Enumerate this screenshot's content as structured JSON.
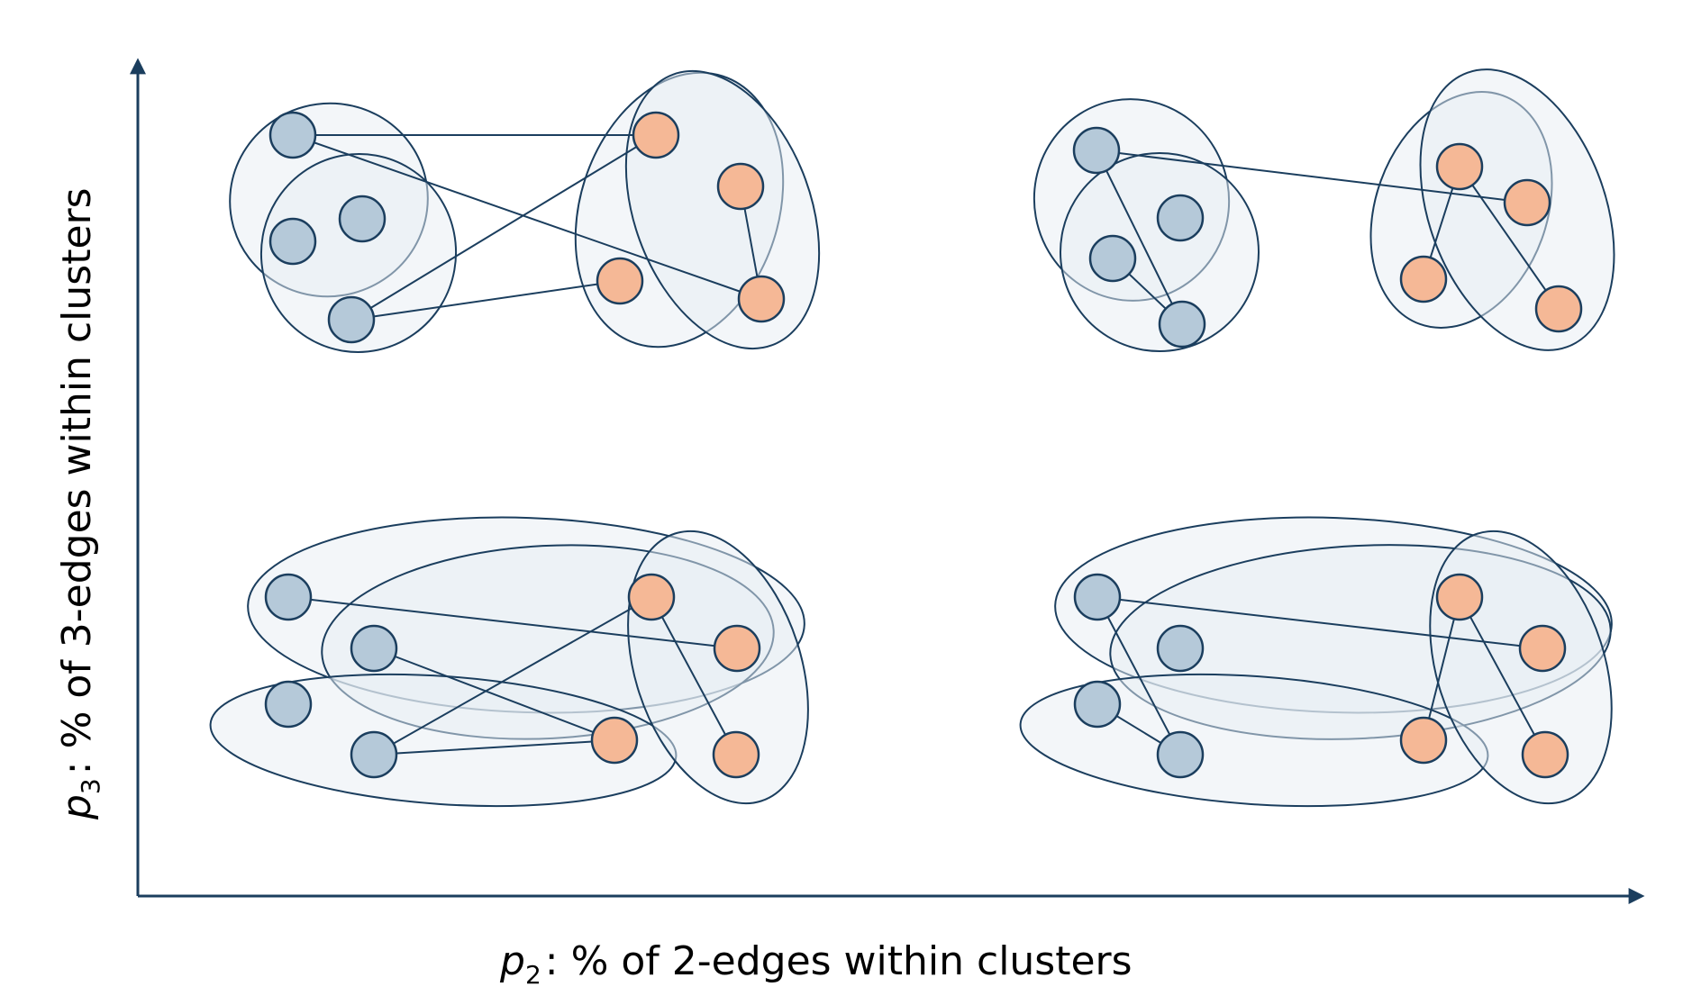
{
  "x_axis": {
    "var": "p",
    "sub": "2",
    "text": ": % of 2-edges within clusters"
  },
  "y_axis": {
    "var": "p",
    "sub": "3",
    "text": ": % of 3-edges within clusters"
  },
  "colors": {
    "blue_node": "#b5c9d9",
    "orange_node": "#f5b896",
    "stroke": "#1b3e5e",
    "hyperedge_fill": "#e8eef3"
  },
  "panels": [
    {
      "position": "top-left"
    },
    {
      "position": "top-right"
    },
    {
      "position": "bottom-left"
    },
    {
      "position": "bottom-right"
    }
  ]
}
